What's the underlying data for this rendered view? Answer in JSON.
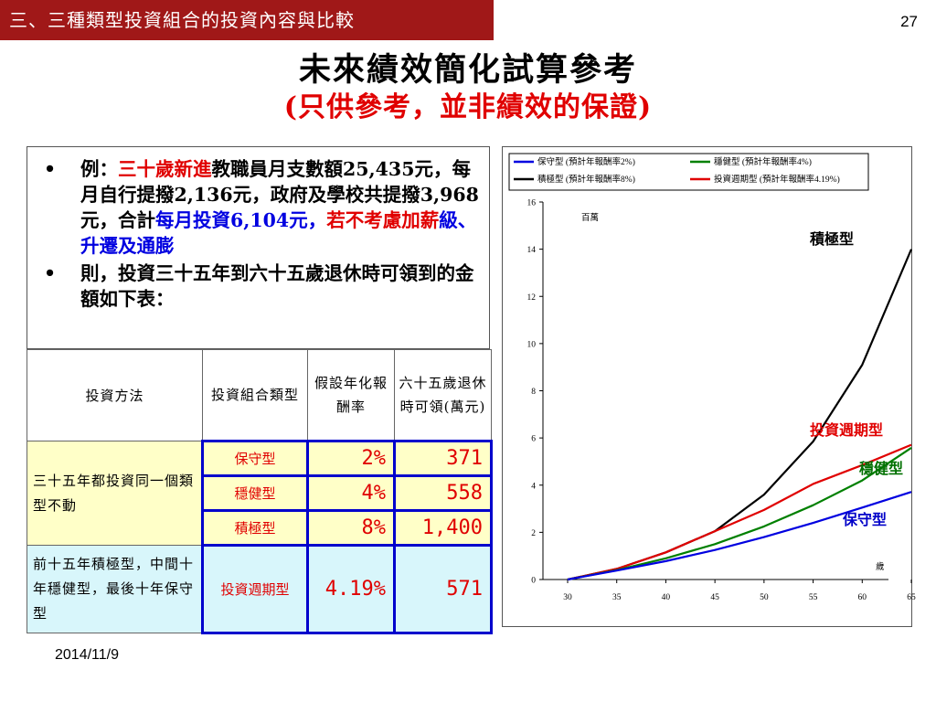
{
  "header": {
    "section_tag": "三、三種類型投資組合的投資內容與比較",
    "page_number": "27"
  },
  "title": "未來績效簡化試算參考",
  "subtitle": "(只供參考，並非績效的保證)",
  "intro": {
    "bullet_symbol": "•",
    "b1_pre": "例：",
    "b1_highlight": "三十歲新進",
    "b1_mid": "教職員月支數額25,435元，每月自行提撥2,136元，政府及學校共提撥3,968元，合計",
    "b1_blue1": "每月投資6,104元，",
    "b1_red2": "若不考慮加薪",
    "b1_blue2": "級、升遷及通膨",
    "b2": "則，投資三十五年到六十五歲退休時可領到的金額如下表："
  },
  "table": {
    "headers": [
      "投資方法",
      "投資組合類型",
      "假設年化報酬率",
      "六十五歲退休時可領(萬元)"
    ],
    "group1_method": "三十五年都投資同一個類型不動",
    "rows": [
      {
        "type": "保守型",
        "rate": "2%",
        "amount": "371"
      },
      {
        "type": "穩健型",
        "rate": "4%",
        "amount": "558"
      },
      {
        "type": "積極型",
        "rate": "8%",
        "amount": "1,400"
      }
    ],
    "group2_method": "前十五年積極型，中間十年穩健型，最後十年保守型",
    "group2_row": {
      "type": "投資週期型",
      "rate": "4.19%",
      "amount": "571"
    }
  },
  "chart_data": {
    "type": "line",
    "x": [
      30,
      35,
      40,
      45,
      50,
      55,
      60,
      65
    ],
    "ylim": [
      0,
      16
    ],
    "xlim": [
      30,
      65
    ],
    "yticks": [
      0,
      2,
      4,
      6,
      8,
      10,
      12,
      14,
      16
    ],
    "ylabel": "百萬",
    "xlabel": "歲",
    "legend_position": "top",
    "series": [
      {
        "name": "保守型 (預計年報酬率2%)",
        "color": "#0000e0",
        "annotation": "保守型",
        "annotation_color": "#0000c8",
        "values": [
          0,
          0.38,
          0.78,
          1.25,
          1.8,
          2.4,
          3.05,
          3.71
        ]
      },
      {
        "name": "穩健型 (預計年報酬率4%)",
        "color": "#008000",
        "annotation": "穩健型",
        "annotation_color": "#007000",
        "values": [
          0,
          0.4,
          0.9,
          1.5,
          2.25,
          3.15,
          4.2,
          5.58
        ]
      },
      {
        "name": "積極型 (預計年報酬率8%)",
        "color": "#000000",
        "annotation": "積極型",
        "annotation_color": "#000000",
        "values": [
          0,
          0.45,
          1.15,
          2.05,
          3.6,
          5.85,
          9.1,
          14.0
        ]
      },
      {
        "name": "投資週期型 (預計年報酬率4.19%)",
        "color": "#e00000",
        "annotation": "投資週期型",
        "annotation_color": "#e00000",
        "values": [
          0,
          0.45,
          1.15,
          2.05,
          2.95,
          4.05,
          4.85,
          5.71
        ]
      }
    ]
  },
  "footer": {
    "date": "2014/11/9"
  }
}
